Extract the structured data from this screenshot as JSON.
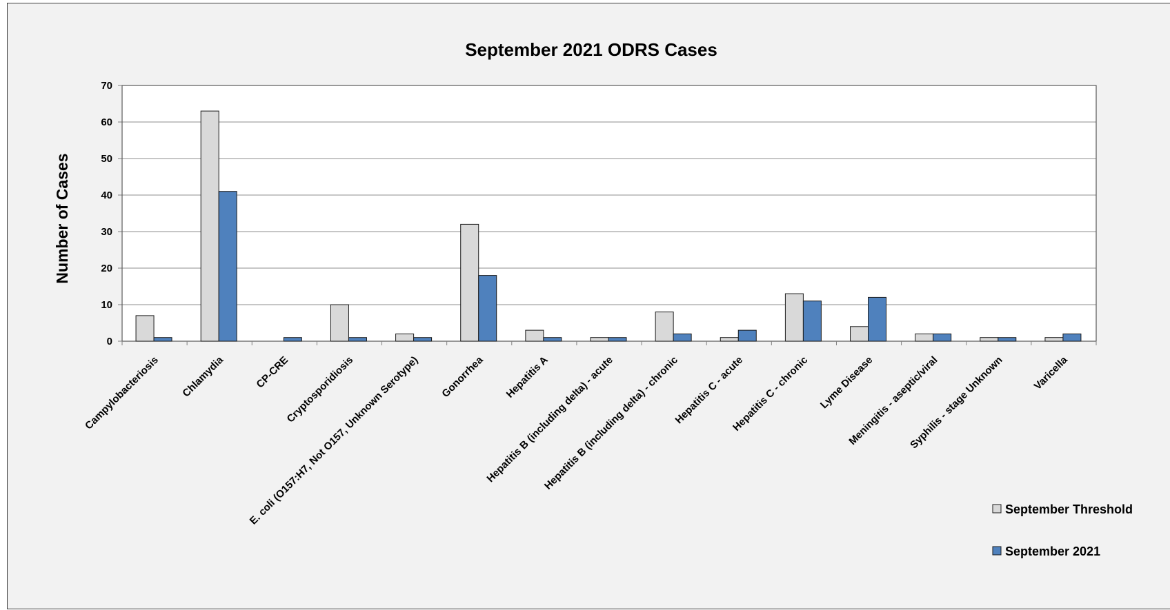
{
  "chart_data": {
    "type": "bar",
    "title": "September 2021 ODRS Cases",
    "xlabel": "",
    "ylabel": "Number of Cases",
    "ylim": [
      0,
      70
    ],
    "yticks": [
      0,
      10,
      20,
      30,
      40,
      50,
      60,
      70
    ],
    "grid": true,
    "legend": "bottom-right",
    "categories": [
      "Campylobacteriosis",
      "Chlamydia",
      "CP-CRE",
      "Cryptosporidiosis",
      "E. coli (O157:H7, Not O157, Unknown Serotype)",
      "Gonorrhea",
      "Hepatitis A",
      "Hepatitis B (including delta) - acute",
      "Hepatitis B (including delta) - chronic",
      "Hepatitis C - acute",
      "Hepatitis C - chronic",
      "Lyme Disease",
      "Meningitis - aseptic/viral",
      "Syphilis - stage Unknown",
      "Varicella"
    ],
    "series": [
      {
        "name": "September Threshold",
        "color": "#d9d9d9",
        "values": [
          7,
          63,
          0,
          10,
          2,
          32,
          3,
          1,
          8,
          1,
          13,
          4,
          2,
          1,
          1
        ]
      },
      {
        "name": "September 2021",
        "color": "#4f81bd",
        "values": [
          1,
          41,
          1,
          1,
          1,
          18,
          1,
          1,
          2,
          3,
          11,
          12,
          2,
          1,
          2
        ]
      }
    ]
  }
}
